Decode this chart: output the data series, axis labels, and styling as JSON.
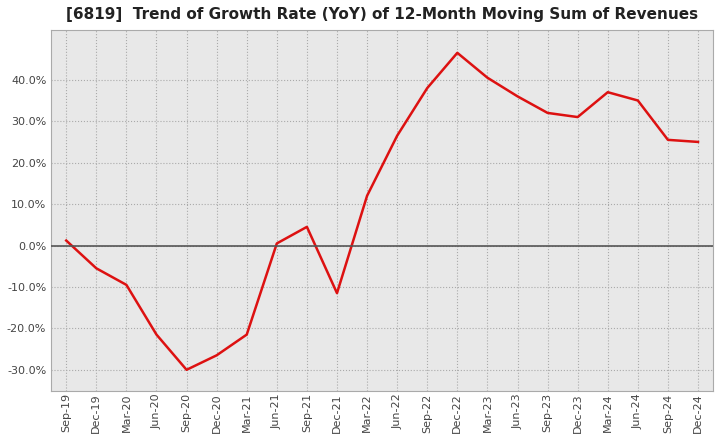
{
  "title": "[6819]  Trend of Growth Rate (YoY) of 12-Month Moving Sum of Revenues",
  "title_fontsize": 11,
  "ylim": [
    -0.35,
    0.52
  ],
  "yticks": [
    -0.3,
    -0.2,
    -0.1,
    0.0,
    0.1,
    0.2,
    0.3,
    0.4
  ],
  "background_color": "#ffffff",
  "plot_bg_color": "#e8e8e8",
  "grid_color": "#aaaaaa",
  "line_color": "#dd1111",
  "zero_line_color": "#555555",
  "tick_color": "#444444",
  "dates": [
    "Sep-19",
    "Dec-19",
    "Mar-20",
    "Jun-20",
    "Sep-20",
    "Dec-20",
    "Mar-21",
    "Jun-21",
    "Sep-21",
    "Dec-21",
    "Mar-22",
    "Jun-22",
    "Sep-22",
    "Dec-22",
    "Mar-23",
    "Jun-23",
    "Sep-23",
    "Dec-23",
    "Mar-24",
    "Jun-24",
    "Sep-24",
    "Dec-24"
  ],
  "values": [
    0.012,
    -0.055,
    -0.095,
    -0.215,
    -0.3,
    -0.265,
    -0.215,
    0.005,
    0.045,
    -0.115,
    0.12,
    0.265,
    0.38,
    0.465,
    0.405,
    0.36,
    0.32,
    0.31,
    0.37,
    0.35,
    0.255,
    0.25
  ]
}
